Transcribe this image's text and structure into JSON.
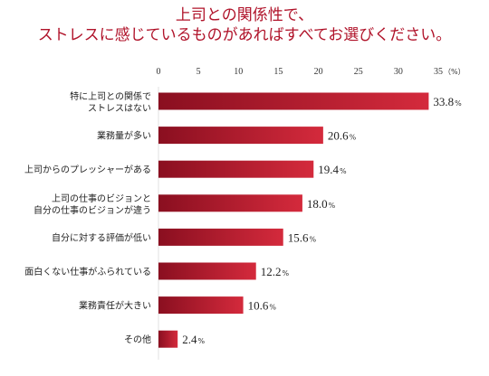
{
  "title_lines": [
    "上司との関係性で、",
    "ストレスに感じているものがあればすべてお選びください。"
  ],
  "chart_data": {
    "type": "bar",
    "orientation": "horizontal",
    "categories": [
      [
        "特に上司との関係で",
        "ストレスはない"
      ],
      [
        "業務量が多い"
      ],
      [
        "上司からのプレッシャーがある"
      ],
      [
        "上司の仕事のビジョンと",
        "自分の仕事のビジョンが違う"
      ],
      [
        "自分に対する評価が低い"
      ],
      [
        "面白くない仕事がふられている"
      ],
      [
        "業務責任が大きい"
      ],
      [
        "その他"
      ]
    ],
    "values": [
      33.8,
      20.6,
      19.4,
      18.0,
      15.6,
      12.2,
      10.6,
      2.4
    ],
    "value_labels": [
      "33.8",
      "20.6",
      "19.4",
      "18.0",
      "15.6",
      "12.2",
      "10.6",
      "2.4"
    ],
    "value_suffix": "%",
    "xticks": [
      0,
      5,
      10,
      15,
      20,
      25,
      30,
      35
    ],
    "xlim": [
      0,
      35
    ],
    "axis_unit": "（%）",
    "grid": false,
    "colors": {
      "bar_dark": "#8a0f20",
      "bar_light": "#d42a3c",
      "title": "#b0132a"
    }
  }
}
